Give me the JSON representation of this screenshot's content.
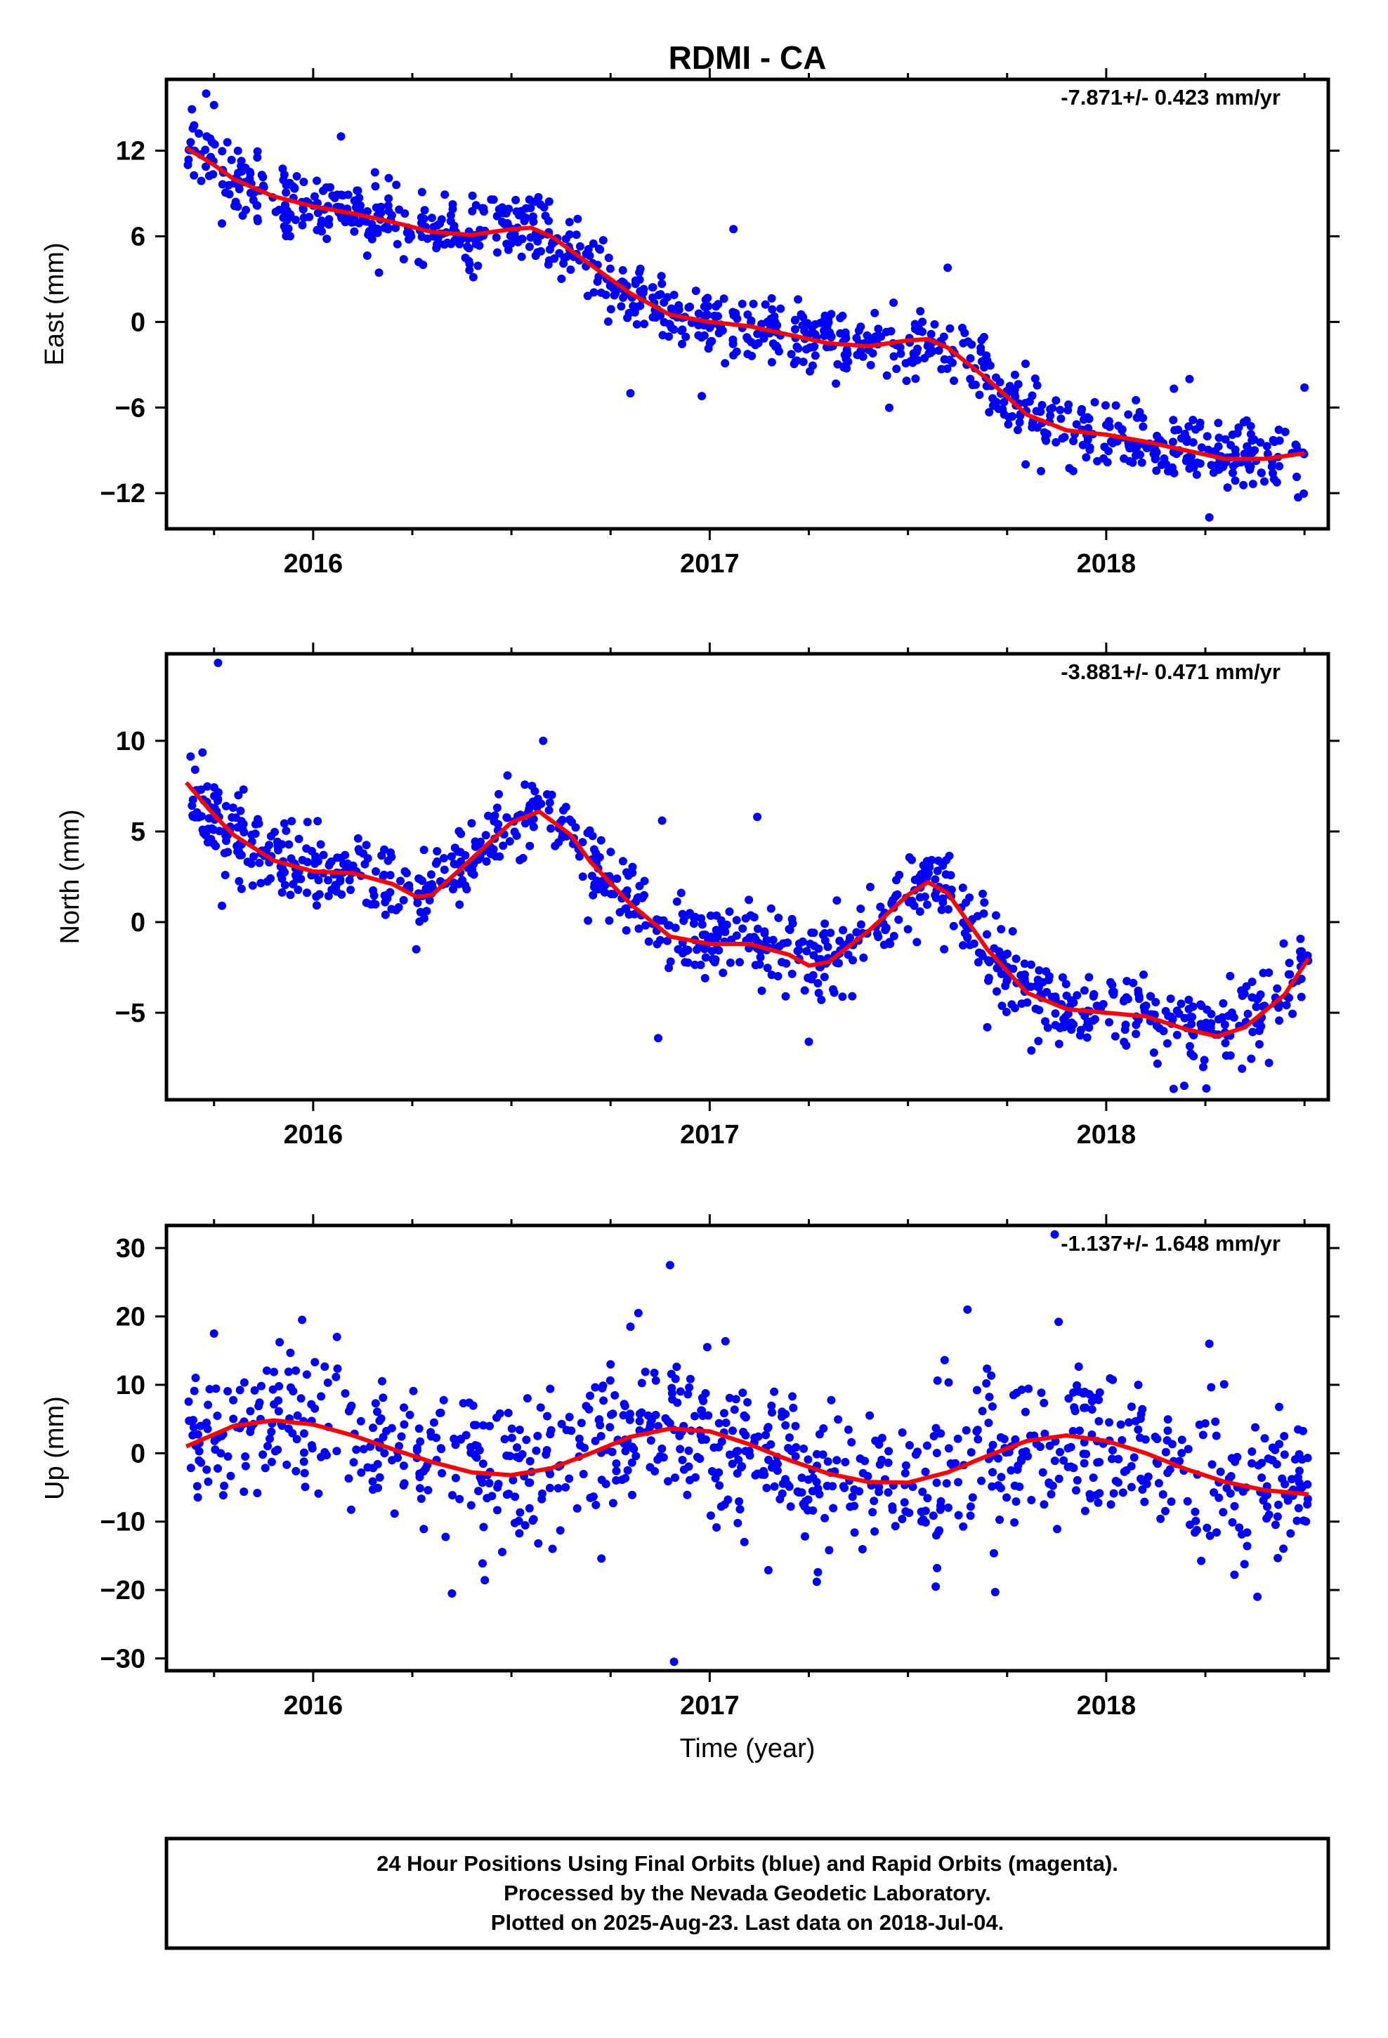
{
  "title": "RDMI - CA",
  "xlabel": "Time (year)",
  "colors": {
    "points": "#0000ff",
    "fit": "#ff0000",
    "frame": "#000000"
  },
  "footer": {
    "line1": "24 Hour Positions Using Final Orbits (blue) and Rapid Orbits (magenta).",
    "line2": "Processed by the Nevada Geodetic Laboratory.",
    "line3": "Plotted on 2025-Aug-23. Last data on 2018-Jul-04."
  },
  "chart_data": [
    {
      "type": "scatter",
      "panel": "east",
      "ylabel": "East (mm)",
      "rate_text": "-7.871+/- 0.423 mm/yr",
      "xlim": [
        2015.63,
        2018.56
      ],
      "ylim": [
        -14.5,
        17
      ],
      "x_ticks": [
        2016,
        2017,
        2018
      ],
      "y_ticks": [
        12,
        6,
        0,
        -6,
        -12
      ],
      "y_tick_labels": [
        "12",
        "6",
        "0",
        "−6",
        "−12"
      ],
      "fit": {
        "x": [
          2015.68,
          2015.75,
          2015.8,
          2015.9,
          2016.0,
          2016.1,
          2016.2,
          2016.3,
          2016.4,
          2016.5,
          2016.55,
          2016.6,
          2016.7,
          2016.8,
          2016.9,
          2017.0,
          2017.1,
          2017.2,
          2017.3,
          2017.4,
          2017.5,
          2017.55,
          2017.6,
          2017.7,
          2017.8,
          2017.9,
          2018.0,
          2018.1,
          2018.2,
          2018.3,
          2018.4,
          2018.5
        ],
        "y": [
          12.2,
          11.0,
          10.0,
          8.8,
          8.1,
          7.6,
          7.0,
          6.3,
          6.1,
          6.5,
          6.6,
          6.0,
          4.0,
          2.0,
          0.5,
          0.0,
          -0.3,
          -0.9,
          -1.5,
          -1.7,
          -1.3,
          -1.2,
          -1.8,
          -4.0,
          -6.5,
          -7.6,
          -7.9,
          -8.4,
          -9.0,
          -9.6,
          -9.6,
          -9.2
        ]
      },
      "scatter": {
        "n": 950,
        "seed": 11,
        "scatter_sd": 1.2,
        "outliers": [
          [
            2015.73,
            16.0
          ],
          [
            2015.75,
            15.2
          ],
          [
            2016.07,
            13.0
          ],
          [
            2016.98,
            -5.2
          ],
          [
            2016.8,
            -5.0
          ],
          [
            2017.06,
            6.5
          ],
          [
            2017.6,
            3.8
          ],
          [
            2018.21,
            -4.0
          ],
          [
            2018.26,
            -13.7
          ],
          [
            2018.5,
            -4.6
          ],
          [
            2015.77,
            6.9
          ]
        ]
      }
    },
    {
      "type": "scatter",
      "panel": "north",
      "ylabel": "North (mm)",
      "rate_text": "-3.881+/- 0.471 mm/yr",
      "xlim": [
        2015.63,
        2018.56
      ],
      "ylim": [
        -9.8,
        14.8
      ],
      "x_ticks": [
        2016,
        2017,
        2018
      ],
      "y_ticks": [
        10,
        5,
        0,
        -5
      ],
      "y_tick_labels": [
        "10",
        "5",
        "0",
        "−5"
      ],
      "fit": {
        "x": [
          2015.68,
          2015.75,
          2015.8,
          2015.9,
          2016.0,
          2016.1,
          2016.2,
          2016.26,
          2016.3,
          2016.4,
          2016.5,
          2016.57,
          2016.65,
          2016.7,
          2016.8,
          2016.9,
          2017.0,
          2017.1,
          2017.2,
          2017.25,
          2017.3,
          2017.4,
          2017.5,
          2017.55,
          2017.6,
          2017.7,
          2017.8,
          2017.9,
          2018.0,
          2018.1,
          2018.2,
          2018.28,
          2018.35,
          2018.45,
          2018.51
        ],
        "y": [
          7.7,
          5.9,
          4.8,
          3.4,
          2.8,
          2.7,
          2.1,
          1.4,
          1.5,
          3.5,
          5.5,
          6.1,
          4.8,
          3.3,
          1.0,
          -0.8,
          -1.2,
          -1.2,
          -1.8,
          -2.4,
          -2.2,
          -0.5,
          1.5,
          2.2,
          1.6,
          -1.5,
          -3.9,
          -4.8,
          -5.0,
          -5.2,
          -5.9,
          -6.3,
          -5.8,
          -4.0,
          -2.0
        ]
      },
      "scatter": {
        "n": 950,
        "seed": 23,
        "scatter_sd": 1.05,
        "outliers": [
          [
            2015.76,
            14.3
          ],
          [
            2016.58,
            10.0
          ],
          [
            2016.87,
            -6.4
          ],
          [
            2016.88,
            5.6
          ],
          [
            2017.12,
            5.8
          ],
          [
            2017.25,
            -6.6
          ],
          [
            2017.7,
            -5.8
          ],
          [
            2018.17,
            -9.2
          ],
          [
            2018.22,
            -7.4
          ],
          [
            2016.26,
            -1.5
          ],
          [
            2015.77,
            0.9
          ]
        ]
      }
    },
    {
      "type": "scatter",
      "panel": "up",
      "ylabel": "Up (mm)",
      "rate_text": "-1.137+/- 1.648 mm/yr",
      "xlim": [
        2015.63,
        2018.56
      ],
      "ylim": [
        -31.8,
        33.3
      ],
      "x_ticks": [
        2016,
        2017,
        2018
      ],
      "y_ticks": [
        30,
        20,
        10,
        0,
        -10,
        -20,
        -30
      ],
      "y_tick_labels": [
        "30",
        "20",
        "10",
        "0",
        "−10",
        "−20",
        "−30"
      ],
      "fit": {
        "x": [
          2015.68,
          2015.8,
          2015.9,
          2016.0,
          2016.1,
          2016.2,
          2016.3,
          2016.4,
          2016.5,
          2016.6,
          2016.7,
          2016.8,
          2016.9,
          2017.0,
          2017.1,
          2017.2,
          2017.3,
          2017.4,
          2017.5,
          2017.6,
          2017.7,
          2017.8,
          2017.9,
          2018.0,
          2018.1,
          2018.2,
          2018.3,
          2018.4,
          2018.51
        ],
        "y": [
          1.0,
          4.0,
          4.8,
          4.2,
          2.6,
          0.6,
          -1.3,
          -2.8,
          -3.2,
          -2.2,
          0.0,
          2.4,
          3.6,
          3.2,
          1.3,
          -1.0,
          -3.0,
          -4.2,
          -4.3,
          -2.8,
          -0.4,
          1.8,
          2.6,
          1.8,
          0.0,
          -2.3,
          -4.2,
          -5.4,
          -6.0
        ]
      },
      "scatter": {
        "n": 900,
        "seed": 37,
        "scatter_sd": 5.4,
        "outliers": [
          [
            2016.9,
            27.5
          ],
          [
            2016.82,
            20.5
          ],
          [
            2016.8,
            18.5
          ],
          [
            2016.75,
            13.0
          ],
          [
            2016.91,
            -30.5
          ],
          [
            2016.35,
            -20.5
          ],
          [
            2017.27,
            -18.8
          ],
          [
            2017.57,
            -19.5
          ],
          [
            2017.72,
            -20.3
          ],
          [
            2017.65,
            21.0
          ],
          [
            2017.87,
            32.0
          ],
          [
            2018.26,
            16.0
          ],
          [
            2017.88,
            19.2
          ],
          [
            2015.75,
            17.5
          ],
          [
            2016.06,
            17.0
          ]
        ]
      }
    }
  ]
}
